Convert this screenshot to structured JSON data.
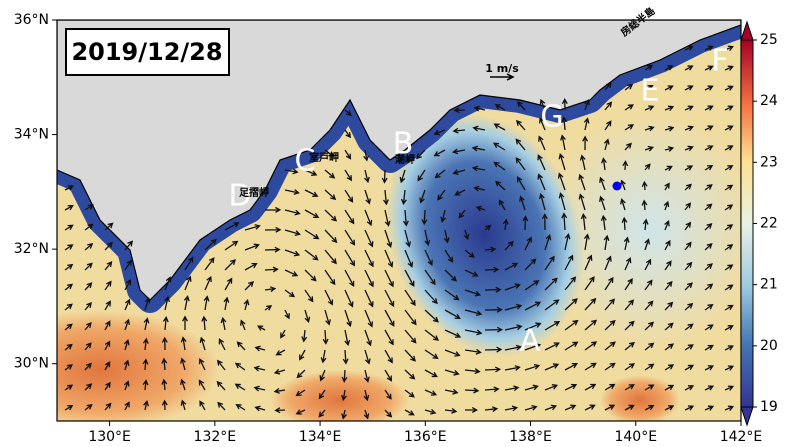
{
  "date": "2019/12/28",
  "scale_label": "1 m/s",
  "region_labels": [
    "A",
    "B",
    "C",
    "D",
    "E",
    "F",
    "G"
  ],
  "place_names": [
    "室戸岬",
    "潮岬",
    "足摺岬",
    "房総半島"
  ],
  "map": {
    "xlim": [
      129,
      142
    ],
    "ylim": [
      29,
      36
    ],
    "xticks": [
      {
        "value": 130,
        "label": "130°E"
      },
      {
        "value": 132,
        "label": "132°E"
      },
      {
        "value": 134,
        "label": "134°E"
      },
      {
        "value": 136,
        "label": "136°E"
      },
      {
        "value": 138,
        "label": "138°E"
      },
      {
        "value": 140,
        "label": "140°E"
      },
      {
        "value": 142,
        "label": "142°E"
      }
    ],
    "yticks": [
      {
        "value": 30,
        "label": "30°N"
      },
      {
        "value": 32,
        "label": "32°N"
      },
      {
        "value": 34,
        "label": "34°N"
      },
      {
        "value": 36,
        "label": "36°N"
      }
    ]
  },
  "colorbar": {
    "lim": [
      19,
      25
    ],
    "ticks": [
      19,
      20,
      21,
      22,
      23,
      24,
      25
    ]
  }
}
